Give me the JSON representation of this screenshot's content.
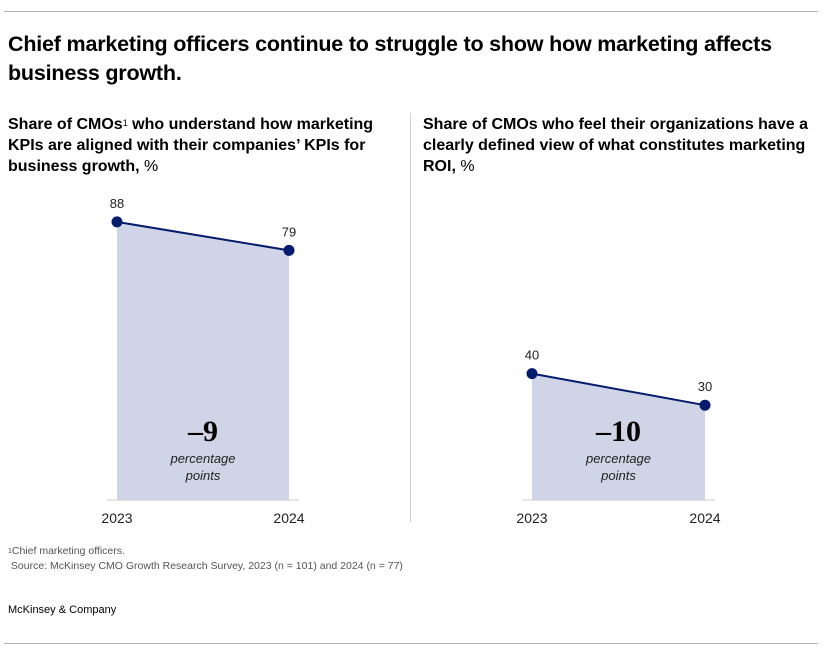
{
  "title": "Chief marketing officers continue to struggle to show how marketing affects business growth.",
  "panels": [
    {
      "subtitle_main": "Share of CMOs",
      "subtitle_sup": "1",
      "subtitle_rest": " who understand how marketing KPIs are aligned with their companies’ KPIs for business growth,",
      "unit": " %"
    },
    {
      "subtitle_main": "Share of CMOs who feel their organizations have a clearly defined view of what constitutes marketing ROI,",
      "unit": " %"
    }
  ],
  "chart_data": [
    {
      "type": "area",
      "title": "Share of CMOs who understand how marketing KPIs are aligned with their companies’ KPIs for business growth, %",
      "categories": [
        "2023",
        "2024"
      ],
      "values": [
        88,
        79
      ],
      "value_labels": [
        "88",
        "79"
      ],
      "ylim": [
        0,
        100
      ],
      "grid": false,
      "annotation": {
        "value": "–9",
        "label_line1": "percentage",
        "label_line2": "points"
      },
      "colors": {
        "line": "#051c6e",
        "fill": "#cfd4e6",
        "axis": "#cccccc"
      }
    },
    {
      "type": "area",
      "title": "Share of CMOs who feel their organizations have a clearly defined view of what constitutes marketing ROI, %",
      "categories": [
        "2023",
        "2024"
      ],
      "values": [
        40,
        30
      ],
      "value_labels": [
        "40",
        "30"
      ],
      "ylim": [
        0,
        100
      ],
      "grid": false,
      "annotation": {
        "value": "–10",
        "label_line1": "percentage",
        "label_line2": "points"
      },
      "colors": {
        "line": "#051c6e",
        "fill": "#cfd4e6",
        "axis": "#cccccc"
      }
    }
  ],
  "footnote": {
    "marker": "1",
    "text": "Chief marketing officers.",
    "source": "Source: McKinsey CMO Growth Research Survey, 2023 (n = 101) and 2024 (n = 77)"
  },
  "brand": "McKinsey & Company"
}
